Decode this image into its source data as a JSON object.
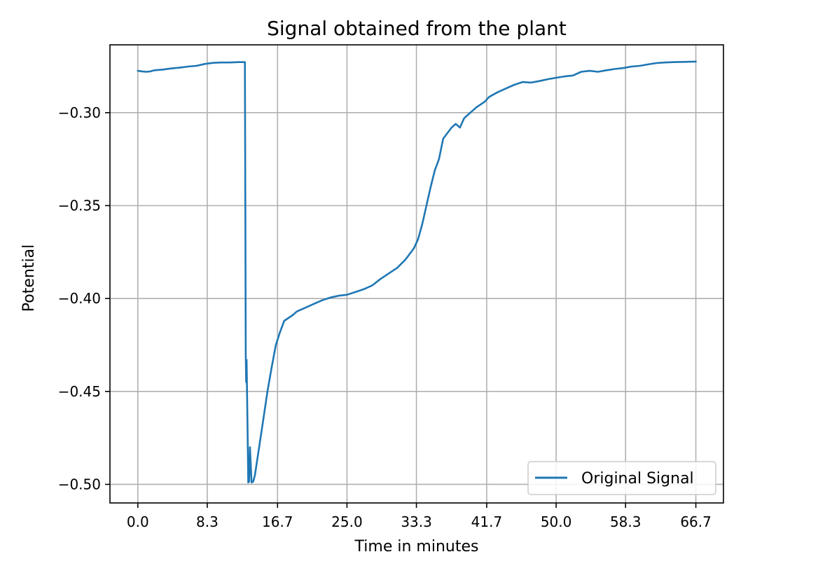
{
  "chart_data": {
    "type": "line",
    "title": "Signal obtained from the plant",
    "xlabel": "Time in minutes",
    "ylabel": "Potential",
    "xlim": [
      -3.33,
      70.0
    ],
    "ylim": [
      -0.51,
      -0.2635
    ],
    "x_ticks": [
      0.0,
      8.3,
      16.7,
      25.0,
      33.3,
      41.7,
      50.0,
      58.3,
      66.7
    ],
    "x_tick_labels": [
      "0.0",
      "8.3",
      "16.7",
      "25.0",
      "33.3",
      "41.7",
      "50.0",
      "58.3",
      "66.7"
    ],
    "y_ticks": [
      -0.3,
      -0.35,
      -0.4,
      -0.45,
      -0.5
    ],
    "y_tick_labels": [
      "−0.30",
      "−0.35",
      "−0.40",
      "−0.45",
      "−0.50"
    ],
    "grid": true,
    "legend": {
      "position": "lower-right",
      "entries": [
        "Original Signal"
      ]
    },
    "series": [
      {
        "name": "Original Signal",
        "color": "#1f77b4",
        "x": [
          0.0,
          0.5,
          1.0,
          1.5,
          2.0,
          3.0,
          4.0,
          5.0,
          6.0,
          7.0,
          8.0,
          9.0,
          10.0,
          11.0,
          12.0,
          12.8,
          12.85,
          12.9,
          12.95,
          13.0,
          13.1,
          13.2,
          13.3,
          13.4,
          13.6,
          13.8,
          14.0,
          14.5,
          15.0,
          15.5,
          16.0,
          16.5,
          17.0,
          17.5,
          18.0,
          18.5,
          19.0,
          19.5,
          20.0,
          21.0,
          22.0,
          23.0,
          24.0,
          25.0,
          26.0,
          27.0,
          28.0,
          29.0,
          30.0,
          31.0,
          32.0,
          33.0,
          33.5,
          34.0,
          34.5,
          35.0,
          35.5,
          36.0,
          36.5,
          37.0,
          37.5,
          38.0,
          38.5,
          39.0,
          39.5,
          40.0,
          40.5,
          41.0,
          41.5,
          42.0,
          43.0,
          44.0,
          45.0,
          46.0,
          47.0,
          48.0,
          49.0,
          50.0,
          51.0,
          52.0,
          53.0,
          54.0,
          55.0,
          56.0,
          57.0,
          58.0,
          59.0,
          60.0,
          61.0,
          62.0,
          63.0,
          64.0,
          65.0,
          66.7
        ],
        "y": [
          -0.2775,
          -0.2778,
          -0.278,
          -0.2778,
          -0.2772,
          -0.2768,
          -0.2762,
          -0.2758,
          -0.2752,
          -0.2748,
          -0.2738,
          -0.2732,
          -0.273,
          -0.273,
          -0.2728,
          -0.2728,
          -0.35,
          -0.43,
          -0.445,
          -0.433,
          -0.465,
          -0.499,
          -0.4985,
          -0.48,
          -0.499,
          -0.4985,
          -0.495,
          -0.48,
          -0.465,
          -0.45,
          -0.437,
          -0.425,
          -0.418,
          -0.412,
          -0.4105,
          -0.409,
          -0.407,
          -0.406,
          -0.405,
          -0.403,
          -0.401,
          -0.3995,
          -0.3985,
          -0.398,
          -0.3965,
          -0.395,
          -0.393,
          -0.3895,
          -0.3865,
          -0.3835,
          -0.379,
          -0.373,
          -0.368,
          -0.36,
          -0.35,
          -0.34,
          -0.331,
          -0.325,
          -0.314,
          -0.311,
          -0.308,
          -0.306,
          -0.308,
          -0.303,
          -0.301,
          -0.299,
          -0.297,
          -0.2955,
          -0.294,
          -0.2915,
          -0.289,
          -0.287,
          -0.285,
          -0.2835,
          -0.2838,
          -0.283,
          -0.282,
          -0.2812,
          -0.2805,
          -0.28,
          -0.278,
          -0.2775,
          -0.278,
          -0.2772,
          -0.2765,
          -0.276,
          -0.2752,
          -0.2748,
          -0.274,
          -0.2733,
          -0.273,
          -0.2728,
          -0.2727,
          -0.2725
        ]
      }
    ]
  }
}
